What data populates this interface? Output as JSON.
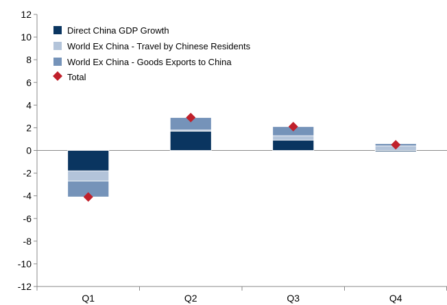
{
  "chart_data": {
    "type": "bar",
    "stacked": true,
    "categories": [
      "Q1",
      "Q2",
      "Q3",
      "Q4"
    ],
    "series": [
      {
        "name": "Direct China GDP Growth",
        "color": "#0a3560",
        "values": [
          -1.8,
          1.7,
          0.9,
          -0.1
        ]
      },
      {
        "name": "World Ex China - Travel by Chinese Residents",
        "color": "#b3c4da",
        "values": [
          -0.9,
          0.1,
          0.4,
          0.4
        ]
      },
      {
        "name": "World Ex China - Goods Exports to China",
        "color": "#7593b9",
        "values": [
          -1.4,
          1.1,
          0.8,
          0.2
        ]
      }
    ],
    "total": {
      "name": "Total",
      "color": "#c0202b",
      "values": [
        -4.1,
        2.9,
        2.1,
        0.5
      ]
    },
    "yticks": [
      12,
      10,
      8,
      6,
      4,
      2,
      0,
      -2,
      -4,
      -6,
      -8,
      -10,
      -12
    ],
    "ylim": [
      -12,
      12
    ],
    "legend_position": "top-left",
    "grid": false
  }
}
